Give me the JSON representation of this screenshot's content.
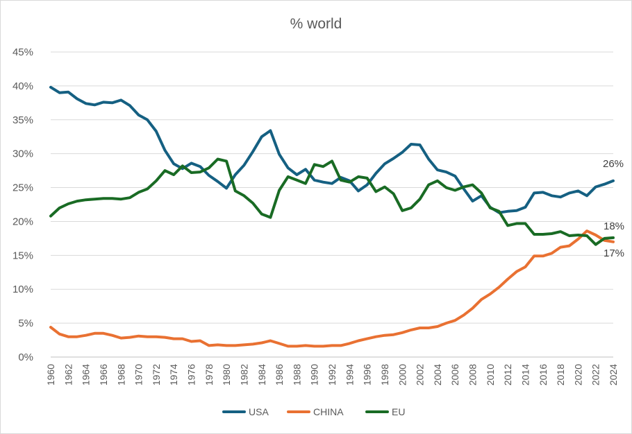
{
  "chart_data": {
    "type": "line",
    "title": "% world",
    "xlabel": "",
    "ylabel": "",
    "ylim": [
      0,
      45
    ],
    "ytick_step": 5,
    "y_tick_labels": [
      "0%",
      "5%",
      "10%",
      "15%",
      "20%",
      "25%",
      "30%",
      "35%",
      "40%",
      "45%"
    ],
    "x_tick_labels": [
      "1960",
      "1962",
      "1964",
      "1966",
      "1968",
      "1970",
      "1972",
      "1974",
      "1976",
      "1978",
      "1980",
      "1982",
      "1984",
      "1986",
      "1988",
      "1990",
      "1992",
      "1994",
      "1996",
      "1998",
      "2000",
      "2002",
      "2004",
      "2006",
      "2008",
      "2010",
      "2012",
      "2014",
      "2016",
      "2018",
      "2020",
      "2022",
      "2024"
    ],
    "x": [
      1960,
      1961,
      1962,
      1963,
      1964,
      1965,
      1966,
      1967,
      1968,
      1969,
      1970,
      1971,
      1972,
      1973,
      1974,
      1975,
      1976,
      1977,
      1978,
      1979,
      1980,
      1981,
      1982,
      1983,
      1984,
      1985,
      1986,
      1987,
      1988,
      1989,
      1990,
      1991,
      1992,
      1993,
      1994,
      1995,
      1996,
      1997,
      1998,
      1999,
      2000,
      2001,
      2002,
      2003,
      2004,
      2005,
      2006,
      2007,
      2008,
      2009,
      2010,
      2011,
      2012,
      2013,
      2014,
      2015,
      2016,
      2017,
      2018,
      2019,
      2020,
      2021,
      2022,
      2023,
      2024
    ],
    "legend_position": "bottom",
    "series": [
      {
        "name": "USA",
        "color": "#156082",
        "values": [
          39.8,
          39.0,
          39.1,
          38.1,
          37.4,
          37.2,
          37.6,
          37.5,
          37.9,
          37.1,
          35.7,
          35.0,
          33.3,
          30.5,
          28.5,
          27.8,
          28.6,
          28.1,
          26.8,
          25.9,
          24.9,
          26.9,
          28.3,
          30.3,
          32.5,
          33.4,
          29.9,
          27.9,
          26.9,
          27.7,
          26.1,
          25.8,
          25.6,
          26.5,
          26.0,
          24.5,
          25.4,
          27.1,
          28.5,
          29.3,
          30.2,
          31.4,
          31.3,
          29.2,
          27.6,
          27.3,
          26.7,
          24.8,
          23.0,
          23.8,
          22.1,
          21.3,
          21.5,
          21.6,
          22.1,
          24.2,
          24.3,
          23.8,
          23.6,
          24.2,
          24.5,
          23.8,
          25.1,
          25.5,
          26.0
        ],
        "end_label": "26%"
      },
      {
        "name": "CHINA",
        "color": "#E97132",
        "values": [
          4.4,
          3.4,
          3.0,
          3.0,
          3.2,
          3.5,
          3.5,
          3.2,
          2.8,
          2.9,
          3.1,
          3.0,
          3.0,
          2.9,
          2.7,
          2.7,
          2.3,
          2.4,
          1.7,
          1.8,
          1.7,
          1.7,
          1.8,
          1.9,
          2.1,
          2.4,
          2.0,
          1.6,
          1.6,
          1.7,
          1.6,
          1.6,
          1.7,
          1.7,
          2.0,
          2.4,
          2.7,
          3.0,
          3.2,
          3.3,
          3.6,
          4.0,
          4.3,
          4.3,
          4.5,
          5.0,
          5.4,
          6.2,
          7.2,
          8.5,
          9.3,
          10.3,
          11.5,
          12.6,
          13.3,
          14.9,
          14.9,
          15.3,
          16.2,
          16.4,
          17.4,
          18.6,
          18.0,
          17.2,
          17.0
        ],
        "end_label": "17%"
      },
      {
        "name": "EU",
        "color": "#196B24",
        "values": [
          20.8,
          22.0,
          22.6,
          23.0,
          23.2,
          23.3,
          23.4,
          23.4,
          23.3,
          23.5,
          24.3,
          24.8,
          26.0,
          27.5,
          26.9,
          28.2,
          27.2,
          27.3,
          27.9,
          29.2,
          28.9,
          24.5,
          23.8,
          22.7,
          21.1,
          20.6,
          24.6,
          26.6,
          26.1,
          25.6,
          28.4,
          28.1,
          28.9,
          26.1,
          25.8,
          26.6,
          26.4,
          24.4,
          25.1,
          24.1,
          21.6,
          22.0,
          23.3,
          25.4,
          26.0,
          25.0,
          24.6,
          25.1,
          25.4,
          24.2,
          22.0,
          21.5,
          19.4,
          19.7,
          19.7,
          18.1,
          18.1,
          18.2,
          18.5,
          17.9,
          18.0,
          17.9,
          16.6,
          17.5,
          17.6
        ],
        "end_label": "18%"
      }
    ]
  }
}
